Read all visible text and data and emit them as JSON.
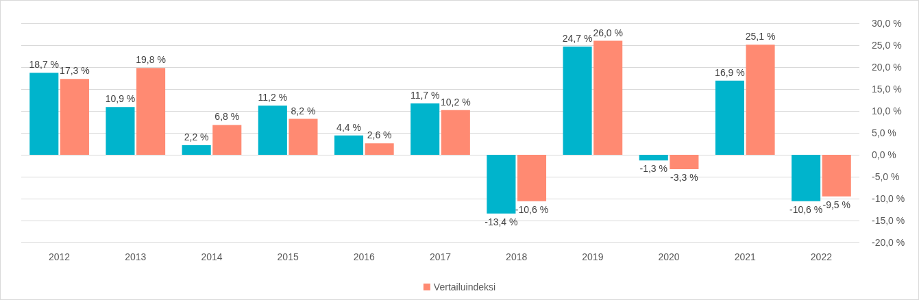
{
  "chart_data": {
    "type": "bar",
    "categories": [
      "2012",
      "2013",
      "2014",
      "2015",
      "2016",
      "2017",
      "2018",
      "2019",
      "2020",
      "2021",
      "2022"
    ],
    "series": [
      {
        "color": "#00b4cc",
        "values": [
          18.7,
          10.9,
          2.2,
          11.2,
          4.4,
          11.7,
          -13.4,
          24.7,
          -1.3,
          16.9,
          -10.6
        ],
        "value_labels": [
          "18,7 %",
          "10,9 %",
          "2,2 %",
          "11,2 %",
          "4,4 %",
          "11,7 %",
          "-13,4 %",
          "24,7 %",
          "-1,3 %",
          "16,9 %",
          "-10,6 %"
        ]
      },
      {
        "name": "Vertailuindeksi",
        "color": "#ff8a72",
        "values": [
          17.3,
          19.8,
          6.8,
          8.2,
          2.6,
          10.2,
          -10.6,
          26.0,
          -3.3,
          25.1,
          -9.5
        ],
        "value_labels": [
          "17,3 %",
          "19,8 %",
          "6,8 %",
          "8,2 %",
          "2,6 %",
          "10,2 %",
          "-10,6 %",
          "26,0 %",
          "-3,3 %",
          "25,1 %",
          "-9,5 %"
        ]
      }
    ],
    "ylim": [
      -20,
      30
    ],
    "yticks": [
      {
        "value": -20,
        "label": "-20,0 %"
      },
      {
        "value": -15,
        "label": "-15,0 %"
      },
      {
        "value": -10,
        "label": "-10,0 %"
      },
      {
        "value": -5,
        "label": "-5,0 %"
      },
      {
        "value": 0,
        "label": "0,0 %"
      },
      {
        "value": 5,
        "label": "5,0 %"
      },
      {
        "value": 10,
        "label": "10,0 %"
      },
      {
        "value": 15,
        "label": "15,0 %"
      },
      {
        "value": 20,
        "label": "20,0 %"
      },
      {
        "value": 25,
        "label": "25,0 %"
      },
      {
        "value": 30,
        "label": "30,0 %"
      }
    ],
    "grid": "y",
    "legend": "bottom"
  }
}
